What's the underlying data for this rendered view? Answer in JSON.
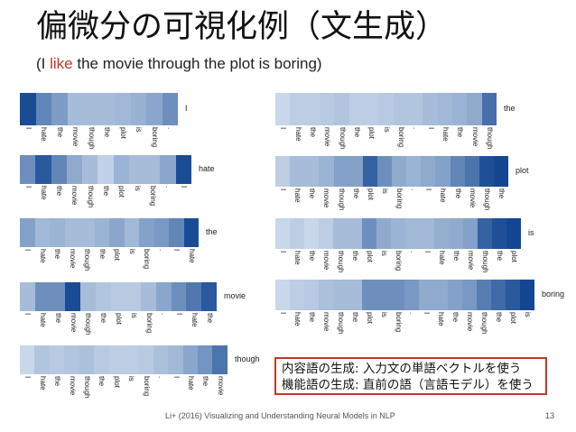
{
  "slide": {
    "title": "偏微分の可視化例（文生成）",
    "subtitle_open": "(I ",
    "subtitle_highlight": "like",
    "subtitle_rest": " the movie through the plot is boring)",
    "highlight_color": "#c0392b",
    "callout_lines": [
      "内容語の生成: 入力文の単語ベクトルを使う",
      "機能語の生成: 直前の語（言語モデル）を使う"
    ],
    "citation": "Li+ (2016) Visualizing and Understanding Neural Models in NLP",
    "page_number": "13"
  },
  "heatmaps": [
    {
      "target": "I",
      "tokens": [
        "I",
        "hate",
        "the",
        "movie",
        "though",
        "the",
        "plot",
        "is",
        "boring",
        "."
      ],
      "levels": [
        0.92,
        0.6,
        0.48,
        0.3,
        0.3,
        0.3,
        0.32,
        0.36,
        0.42,
        0.55
      ]
    },
    {
      "target": "hate",
      "tokens": [
        "I",
        "hate",
        "the",
        "movie",
        "though",
        "the",
        "plot",
        "is",
        "boring",
        ".",
        "I"
      ],
      "levels": [
        0.55,
        0.85,
        0.6,
        0.4,
        0.3,
        0.18,
        0.35,
        0.3,
        0.3,
        0.42,
        0.92
      ]
    },
    {
      "target": "the",
      "tokens": [
        "I",
        "hate",
        "the",
        "movie",
        "though",
        "the",
        "plot",
        "is",
        "boring",
        ".",
        "I",
        "hate"
      ],
      "levels": [
        0.45,
        0.32,
        0.35,
        0.3,
        0.3,
        0.35,
        0.42,
        0.32,
        0.45,
        0.5,
        0.6,
        0.92
      ]
    },
    {
      "target": "movie",
      "tokens": [
        "I",
        "hate",
        "the",
        "movie",
        "though",
        "the",
        "plot",
        "is",
        "boring",
        ".",
        "I",
        "hate",
        "the"
      ],
      "levels": [
        0.3,
        0.55,
        0.55,
        0.92,
        0.3,
        0.25,
        0.22,
        0.22,
        0.3,
        0.42,
        0.55,
        0.68,
        0.85
      ]
    },
    {
      "target": "though",
      "tokens": [
        "I",
        "hate",
        "the",
        "movie",
        "though",
        "the",
        "plot",
        "is",
        "boring",
        ".",
        "I",
        "hate",
        "the",
        "movie"
      ],
      "levels": [
        0.15,
        0.25,
        0.22,
        0.25,
        0.28,
        0.22,
        0.2,
        0.2,
        0.22,
        0.28,
        0.32,
        0.42,
        0.52,
        0.7
      ]
    },
    {
      "target": "the",
      "tokens": [
        "I",
        "hate",
        "the",
        "movie",
        "though",
        "the",
        "plot",
        "is",
        "boring",
        ".",
        "I",
        "hate",
        "the",
        "movie",
        "though"
      ],
      "levels": [
        0.15,
        0.2,
        0.2,
        0.22,
        0.25,
        0.2,
        0.2,
        0.22,
        0.25,
        0.25,
        0.3,
        0.32,
        0.35,
        0.4,
        0.72
      ]
    },
    {
      "target": "plot",
      "tokens": [
        "I",
        "hate",
        "the",
        "movie",
        "though",
        "the",
        "plot",
        "is",
        "boring",
        ".",
        "I",
        "hate",
        "the",
        "movie",
        "though",
        "the"
      ],
      "levels": [
        0.2,
        0.3,
        0.3,
        0.35,
        0.45,
        0.45,
        0.8,
        0.55,
        0.4,
        0.35,
        0.4,
        0.45,
        0.6,
        0.7,
        0.9,
        0.95
      ]
    },
    {
      "target": "is",
      "tokens": [
        "I",
        "hate",
        "the",
        "movie",
        "though",
        "the",
        "plot",
        "is",
        "boring",
        ".",
        "I",
        "hate",
        "the",
        "movie",
        "though",
        "the",
        "plot"
      ],
      "levels": [
        0.15,
        0.2,
        0.15,
        0.2,
        0.3,
        0.3,
        0.55,
        0.4,
        0.35,
        0.32,
        0.32,
        0.38,
        0.4,
        0.45,
        0.8,
        0.9,
        0.95
      ]
    },
    {
      "target": "boring",
      "tokens": [
        "I",
        "hate",
        "the",
        "movie",
        "though",
        "the",
        "plot",
        "is",
        "boring",
        ".",
        "I",
        "hate",
        "the",
        "movie",
        "though",
        "the",
        "plot",
        "is"
      ],
      "levels": [
        0.15,
        0.2,
        0.22,
        0.28,
        0.3,
        0.3,
        0.55,
        0.55,
        0.55,
        0.5,
        0.4,
        0.4,
        0.45,
        0.5,
        0.65,
        0.75,
        0.85,
        0.95
      ]
    }
  ]
}
